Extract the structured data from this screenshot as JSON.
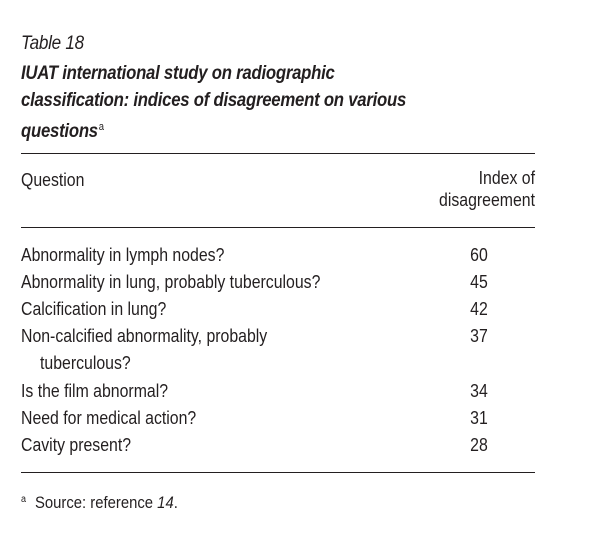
{
  "table": {
    "label": "Table 18",
    "title": "IUAT international study on radiographic classification: indices of disagreement on various questions",
    "title_footnote_mark": "a",
    "columns": {
      "question": "Question",
      "index_line1": "Index of",
      "index_line2": "disagreement"
    },
    "rows": [
      {
        "question": "Abnormality in lymph nodes?",
        "value": "60"
      },
      {
        "question": "Abnormality in lung, probably tuberculous?",
        "value": "45"
      },
      {
        "question": "Calcification in lung?",
        "value": "42"
      },
      {
        "question_line1": "Non-calcified abnormality, probably",
        "question_line2": "tuberculous?",
        "value": "37"
      },
      {
        "question": "Is the film abnormal?",
        "value": "34"
      },
      {
        "question": "Need for medical action?",
        "value": "31"
      },
      {
        "question": "Cavity present?",
        "value": "28"
      }
    ],
    "footnote": {
      "mark": "a",
      "text": "Source: reference ",
      "ref": "14",
      "end": "."
    }
  }
}
